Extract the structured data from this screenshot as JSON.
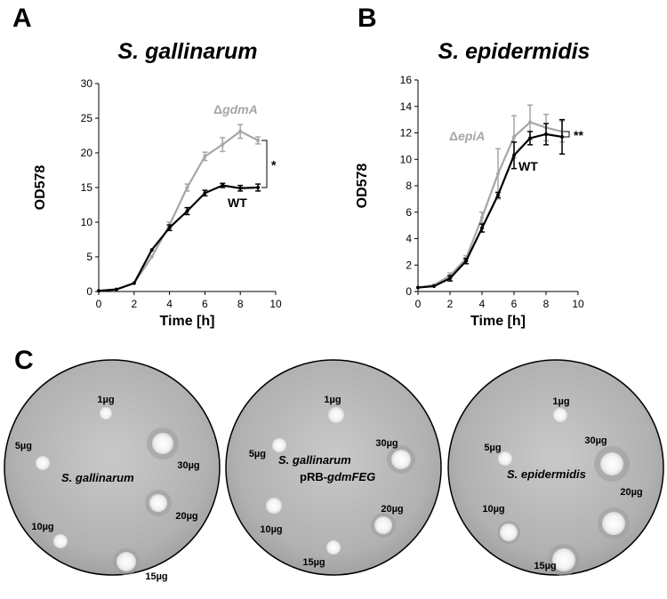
{
  "panels": {
    "a": {
      "letter": "A",
      "title": "S. gallinarum"
    },
    "b": {
      "letter": "B",
      "title": "S. epidermidis"
    },
    "c": {
      "letter": "C"
    }
  },
  "chart_data": [
    {
      "type": "line",
      "title": "S. gallinarum",
      "xlabel": "Time [h]",
      "ylabel": "OD578",
      "xlim": [
        0,
        10
      ],
      "ylim": [
        0,
        30
      ],
      "xticks": [
        0,
        2,
        4,
        6,
        8,
        10
      ],
      "yticks": [
        0,
        5,
        10,
        15,
        20,
        25,
        30
      ],
      "x": [
        0,
        1,
        2,
        3,
        4,
        5,
        6,
        7,
        8,
        9
      ],
      "series": [
        {
          "name": "WT",
          "color": "#000000",
          "values": [
            0.1,
            0.3,
            1.2,
            6.0,
            9.2,
            11.6,
            14.2,
            15.3,
            14.9,
            15.0
          ],
          "errors": [
            0,
            0,
            0,
            0,
            0.4,
            0.5,
            0.4,
            0.3,
            0.4,
            0.5
          ]
        },
        {
          "name": "ΔgdmA",
          "name_prefix": "Δ",
          "name_italic": "gdmA",
          "color": "#a6a6a6",
          "values": [
            0.1,
            0.3,
            1.2,
            5.0,
            9.6,
            15.0,
            19.5,
            21.2,
            23.1,
            21.8
          ],
          "errors": [
            0,
            0,
            0,
            0,
            0.4,
            0.5,
            0.6,
            1.0,
            1.0,
            0.5
          ]
        }
      ],
      "annotation": "*"
    },
    {
      "type": "line",
      "title": "S. epidermidis",
      "xlabel": "Time [h]",
      "ylabel": "OD578",
      "xlim": [
        0,
        10
      ],
      "ylim": [
        0,
        16
      ],
      "xticks": [
        0,
        2,
        4,
        6,
        8,
        10
      ],
      "yticks": [
        0,
        2,
        4,
        6,
        8,
        10,
        12,
        14,
        16
      ],
      "x": [
        0,
        1,
        2,
        3,
        4,
        5,
        6,
        7,
        8,
        9
      ],
      "series": [
        {
          "name": "WT",
          "color": "#000000",
          "values": [
            0.3,
            0.4,
            1.0,
            2.3,
            4.8,
            7.3,
            10.3,
            11.6,
            11.9,
            11.7
          ],
          "errors": [
            0,
            0,
            0.2,
            0.2,
            0.3,
            0.2,
            1.0,
            0.5,
            0.8,
            1.3
          ]
        },
        {
          "name": "ΔepiA",
          "name_prefix": "Δ",
          "name_italic": "epiA",
          "color": "#a6a6a6",
          "values": [
            0.3,
            0.5,
            1.2,
            2.5,
            5.6,
            8.9,
            11.7,
            12.8,
            12.4,
            12.1
          ],
          "errors": [
            0,
            0,
            0.2,
            0.2,
            0.4,
            1.9,
            1.6,
            1.3,
            1.0,
            0.8
          ]
        }
      ],
      "annotation": "**"
    }
  ],
  "plates": [
    {
      "name_lines": [
        "S. gallinarum"
      ],
      "labels": [
        "1µg",
        "5µg",
        "30µg",
        "20µg",
        "10µg",
        "15µg"
      ]
    },
    {
      "name_lines": [
        "S. gallinarum",
        "pRB-",
        "gdmFEG"
      ],
      "labels": [
        "1µg",
        "5µg",
        "30µg",
        "20µg",
        "10µg",
        "15µg"
      ]
    },
    {
      "name_lines": [
        "S. epidermidis"
      ],
      "labels": [
        "1µg",
        "5µg",
        "30µg",
        "20µg",
        "10µg",
        "15µg"
      ]
    }
  ]
}
